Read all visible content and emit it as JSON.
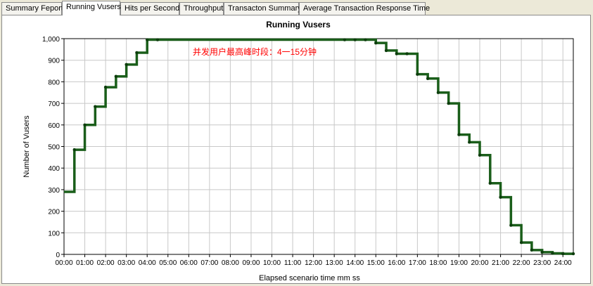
{
  "tabs": [
    {
      "label": "Summary Feport",
      "active": false
    },
    {
      "label": "Running Vusers",
      "active": true
    },
    {
      "label": "Hits per Second",
      "active": false
    },
    {
      "label": "Throughput",
      "active": false
    },
    {
      "label": "Transacton Summary",
      "active": false
    },
    {
      "label": "Average Transaction Response Time",
      "active": false
    }
  ],
  "chart_data": {
    "type": "line",
    "title": "Running Vusers",
    "xlabel": "Elapsed scenario time mm ss",
    "ylabel": "Number of Vusers",
    "annotation": "并发用户最高峰时段：4一15分钟",
    "annotation_color": "#ff0000",
    "line_color": "#1a5e1a",
    "grid": true,
    "xlim": [
      0,
      1470
    ],
    "ylim": [
      0,
      1000
    ],
    "y_ticks": [
      0,
      100,
      200,
      300,
      400,
      500,
      600,
      700,
      800,
      900,
      1000
    ],
    "y_tick_labels": [
      "0",
      "100",
      "200",
      "300",
      "400",
      "500",
      "600",
      "700",
      "800",
      "900",
      "1,000"
    ],
    "x_ticks": [
      0,
      60,
      120,
      180,
      240,
      300,
      360,
      420,
      480,
      540,
      600,
      660,
      720,
      780,
      840,
      900,
      960,
      1020,
      1080,
      1140,
      1200,
      1260,
      1320,
      1380,
      1440
    ],
    "x_tick_labels": [
      "00:00",
      "01:00",
      "02:00",
      "03:00",
      "04:00",
      "05:00",
      "06:00",
      "07:00",
      "08:00",
      "09:00",
      "10:00",
      "11:00",
      "12:00",
      "13:00",
      "14:00",
      "15:00",
      "16:00",
      "17:00",
      "18:00",
      "19:00",
      "20:00",
      "21:00",
      "22:00",
      "23:00",
      "24:00"
    ],
    "series": [
      {
        "x": [
          0,
          30,
          60,
          90,
          120,
          150,
          180,
          210,
          240,
          270,
          810,
          840,
          870,
          900,
          930,
          960,
          990,
          1020,
          1050,
          1080,
          1110,
          1140,
          1170,
          1200,
          1230,
          1260,
          1290,
          1320,
          1350,
          1380,
          1410,
          1440,
          1470
        ],
        "values": [
          290,
          485,
          600,
          685,
          775,
          825,
          880,
          935,
          995,
          995,
          995,
          995,
          995,
          980,
          945,
          930,
          930,
          835,
          815,
          750,
          700,
          555,
          520,
          460,
          330,
          265,
          135,
          55,
          20,
          10,
          5,
          3,
          3
        ]
      }
    ]
  }
}
